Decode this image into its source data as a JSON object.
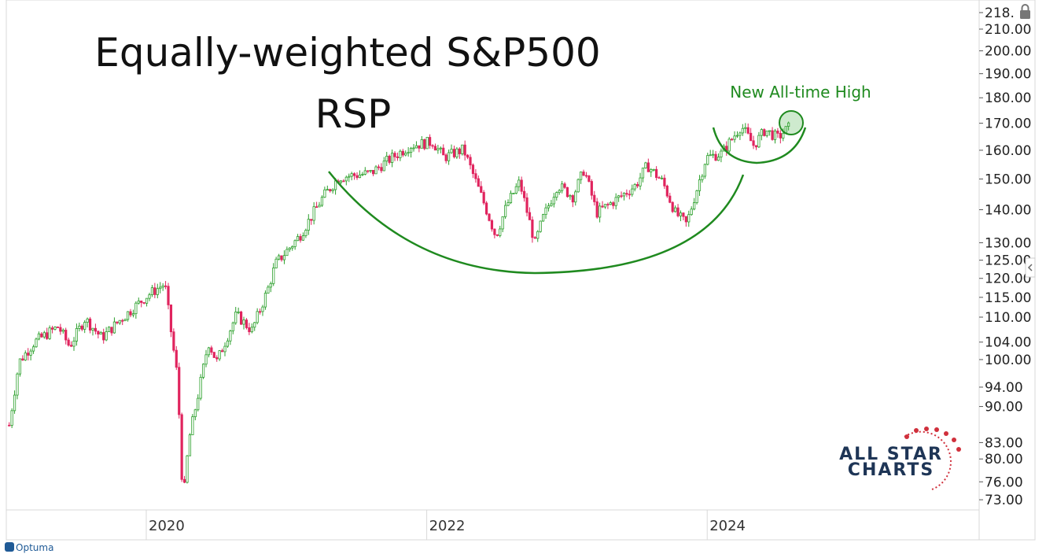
{
  "chart_data": {
    "type": "candlestick",
    "title": "Equally-weighted S&P500",
    "subtitle": "RSP",
    "annotation": "New All-time High",
    "yscale": "log",
    "ylim": [
      71,
      220
    ],
    "yticks": [
      "218.",
      "210.00",
      "200.00",
      "190.00",
      "180.00",
      "170.00",
      "160.00",
      "150.00",
      "140.00",
      "130.00",
      "125.00",
      "120.00",
      "115.00",
      "110.00",
      "104.00",
      "100.00",
      "94.00",
      "90.00",
      "83.00",
      "80.00",
      "76.00",
      "73.00"
    ],
    "xticks": [
      "2020",
      "2022",
      "2024"
    ],
    "xlim": [
      2019.0,
      2025.5
    ],
    "price_path": [
      [
        2019.0,
        86.3
      ],
      [
        2019.07,
        99.5
      ],
      [
        2019.18,
        104
      ],
      [
        2019.35,
        107.7
      ],
      [
        2019.43,
        103
      ],
      [
        2019.54,
        109.6
      ],
      [
        2019.66,
        105
      ],
      [
        2019.8,
        109.6
      ],
      [
        2019.99,
        115.6
      ],
      [
        2020.11,
        118.6
      ],
      [
        2020.16,
        105
      ],
      [
        2020.2,
        96
      ],
      [
        2020.24,
        72.4
      ],
      [
        2020.28,
        83.3
      ],
      [
        2020.36,
        94.3
      ],
      [
        2020.42,
        104
      ],
      [
        2020.48,
        99.5
      ],
      [
        2020.62,
        110.6
      ],
      [
        2020.73,
        106.7
      ],
      [
        2020.84,
        116.6
      ],
      [
        2020.9,
        124
      ],
      [
        2021.07,
        131.9
      ],
      [
        2021.24,
        144.2
      ],
      [
        2021.35,
        150.6
      ],
      [
        2021.58,
        152
      ],
      [
        2021.69,
        156
      ],
      [
        2021.86,
        161.7
      ],
      [
        2022.02,
        163
      ],
      [
        2022.1,
        157.4
      ],
      [
        2022.24,
        160.3
      ],
      [
        2022.39,
        141.6
      ],
      [
        2022.47,
        131.9
      ],
      [
        2022.55,
        141.6
      ],
      [
        2022.64,
        149
      ],
      [
        2022.75,
        129.7
      ],
      [
        2022.8,
        136.7
      ],
      [
        2022.91,
        148
      ],
      [
        2023.02,
        144.2
      ],
      [
        2023.1,
        153.3
      ],
      [
        2023.19,
        139
      ],
      [
        2023.36,
        144.2
      ],
      [
        2023.47,
        148
      ],
      [
        2023.55,
        154.7
      ],
      [
        2023.66,
        149
      ],
      [
        2023.75,
        139
      ],
      [
        2023.83,
        135.5
      ],
      [
        2023.92,
        149.2
      ],
      [
        2023.97,
        157.4
      ],
      [
        2024.08,
        158.8
      ],
      [
        2024.22,
        169
      ],
      [
        2024.31,
        161.7
      ],
      [
        2024.39,
        167.5
      ],
      [
        2024.48,
        164.5
      ],
      [
        2024.56,
        168.4
      ]
    ],
    "colors": {
      "up": "#2ca02c",
      "down": "#e0245e",
      "annotation": "#1f8a1f"
    }
  },
  "branding": {
    "logo_top": "ALL STAR",
    "logo_bottom": "CHARTS",
    "vendor": "Optuma"
  }
}
